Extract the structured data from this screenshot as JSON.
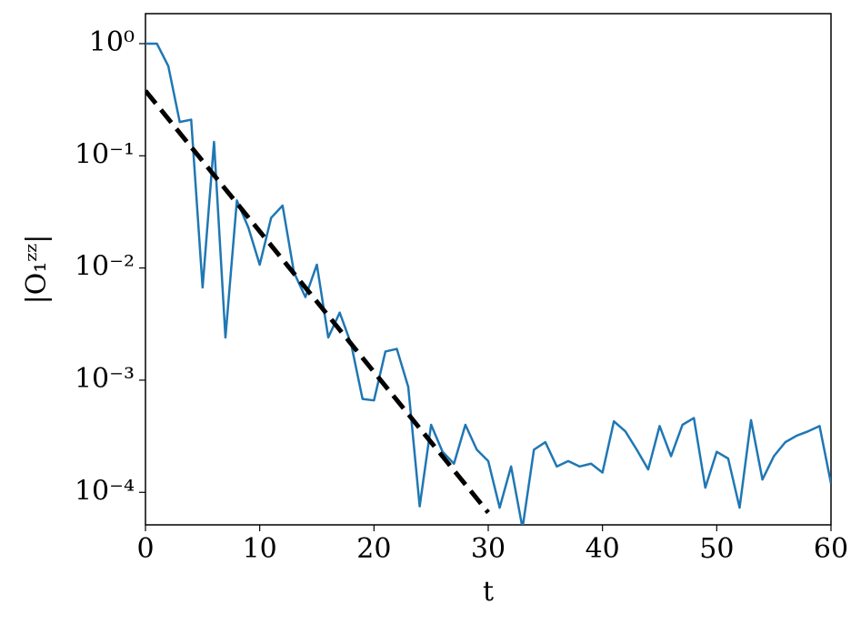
{
  "chart_data": {
    "type": "line",
    "xlabel": "t",
    "ylabel": "|O₁ᶻᶻ|",
    "yscale": "log",
    "grid": false,
    "xlim": [
      0,
      60
    ],
    "xticks": [
      0,
      10,
      20,
      30,
      40,
      50,
      60
    ],
    "ylim": [
      5.13e-05,
      1.85
    ],
    "yticks": [
      {
        "value": 1,
        "label": "10⁰"
      },
      {
        "value": 0.1,
        "label": "10⁻¹"
      },
      {
        "value": 0.01,
        "label": "10⁻²"
      },
      {
        "value": 0.001,
        "label": "10⁻³"
      },
      {
        "value": 0.0001,
        "label": "10⁻⁴"
      }
    ],
    "series": [
      {
        "color": "#1f77b4",
        "style": "solid",
        "x": [
          0,
          1,
          2,
          3,
          4,
          5,
          6,
          7,
          8,
          9,
          10,
          11,
          12,
          13,
          14,
          15,
          16,
          17,
          18,
          19,
          20,
          21,
          22,
          23,
          24,
          25,
          26,
          27,
          28,
          29,
          30,
          31,
          32,
          33,
          34,
          35,
          36,
          37,
          38,
          39,
          40,
          41,
          42,
          43,
          44,
          45,
          46,
          47,
          48,
          49,
          50,
          51,
          52,
          53,
          54,
          55,
          56,
          57,
          58,
          59,
          60
        ],
        "values": [
          1.0,
          1.0,
          0.63,
          0.2,
          0.21,
          0.0067,
          0.133,
          0.0024,
          0.04,
          0.023,
          0.0107,
          0.028,
          0.036,
          0.0091,
          0.0055,
          0.0107,
          0.0024,
          0.004,
          0.0021,
          0.00068,
          0.00066,
          0.0018,
          0.0019,
          0.00087,
          7.5e-05,
          0.0004,
          0.00023,
          0.00018,
          0.0004,
          0.00024,
          0.00019,
          7.3e-05,
          0.00017,
          4.8e-05,
          0.00024,
          0.00028,
          0.00017,
          0.00019,
          0.00017,
          0.00018,
          0.00015,
          0.00043,
          0.00035,
          0.00024,
          0.00016,
          0.00039,
          0.00021,
          0.0004,
          0.00046,
          0.00011,
          0.00023,
          0.0002,
          7.3e-05,
          0.00044,
          0.00013,
          0.00021,
          0.00028,
          0.00032,
          0.00035,
          0.00039,
          0.00012
        ]
      },
      {
        "color": "#000000",
        "style": "dashed",
        "x": [
          0,
          30
        ],
        "values": [
          0.38,
          6.6e-05
        ]
      }
    ]
  }
}
